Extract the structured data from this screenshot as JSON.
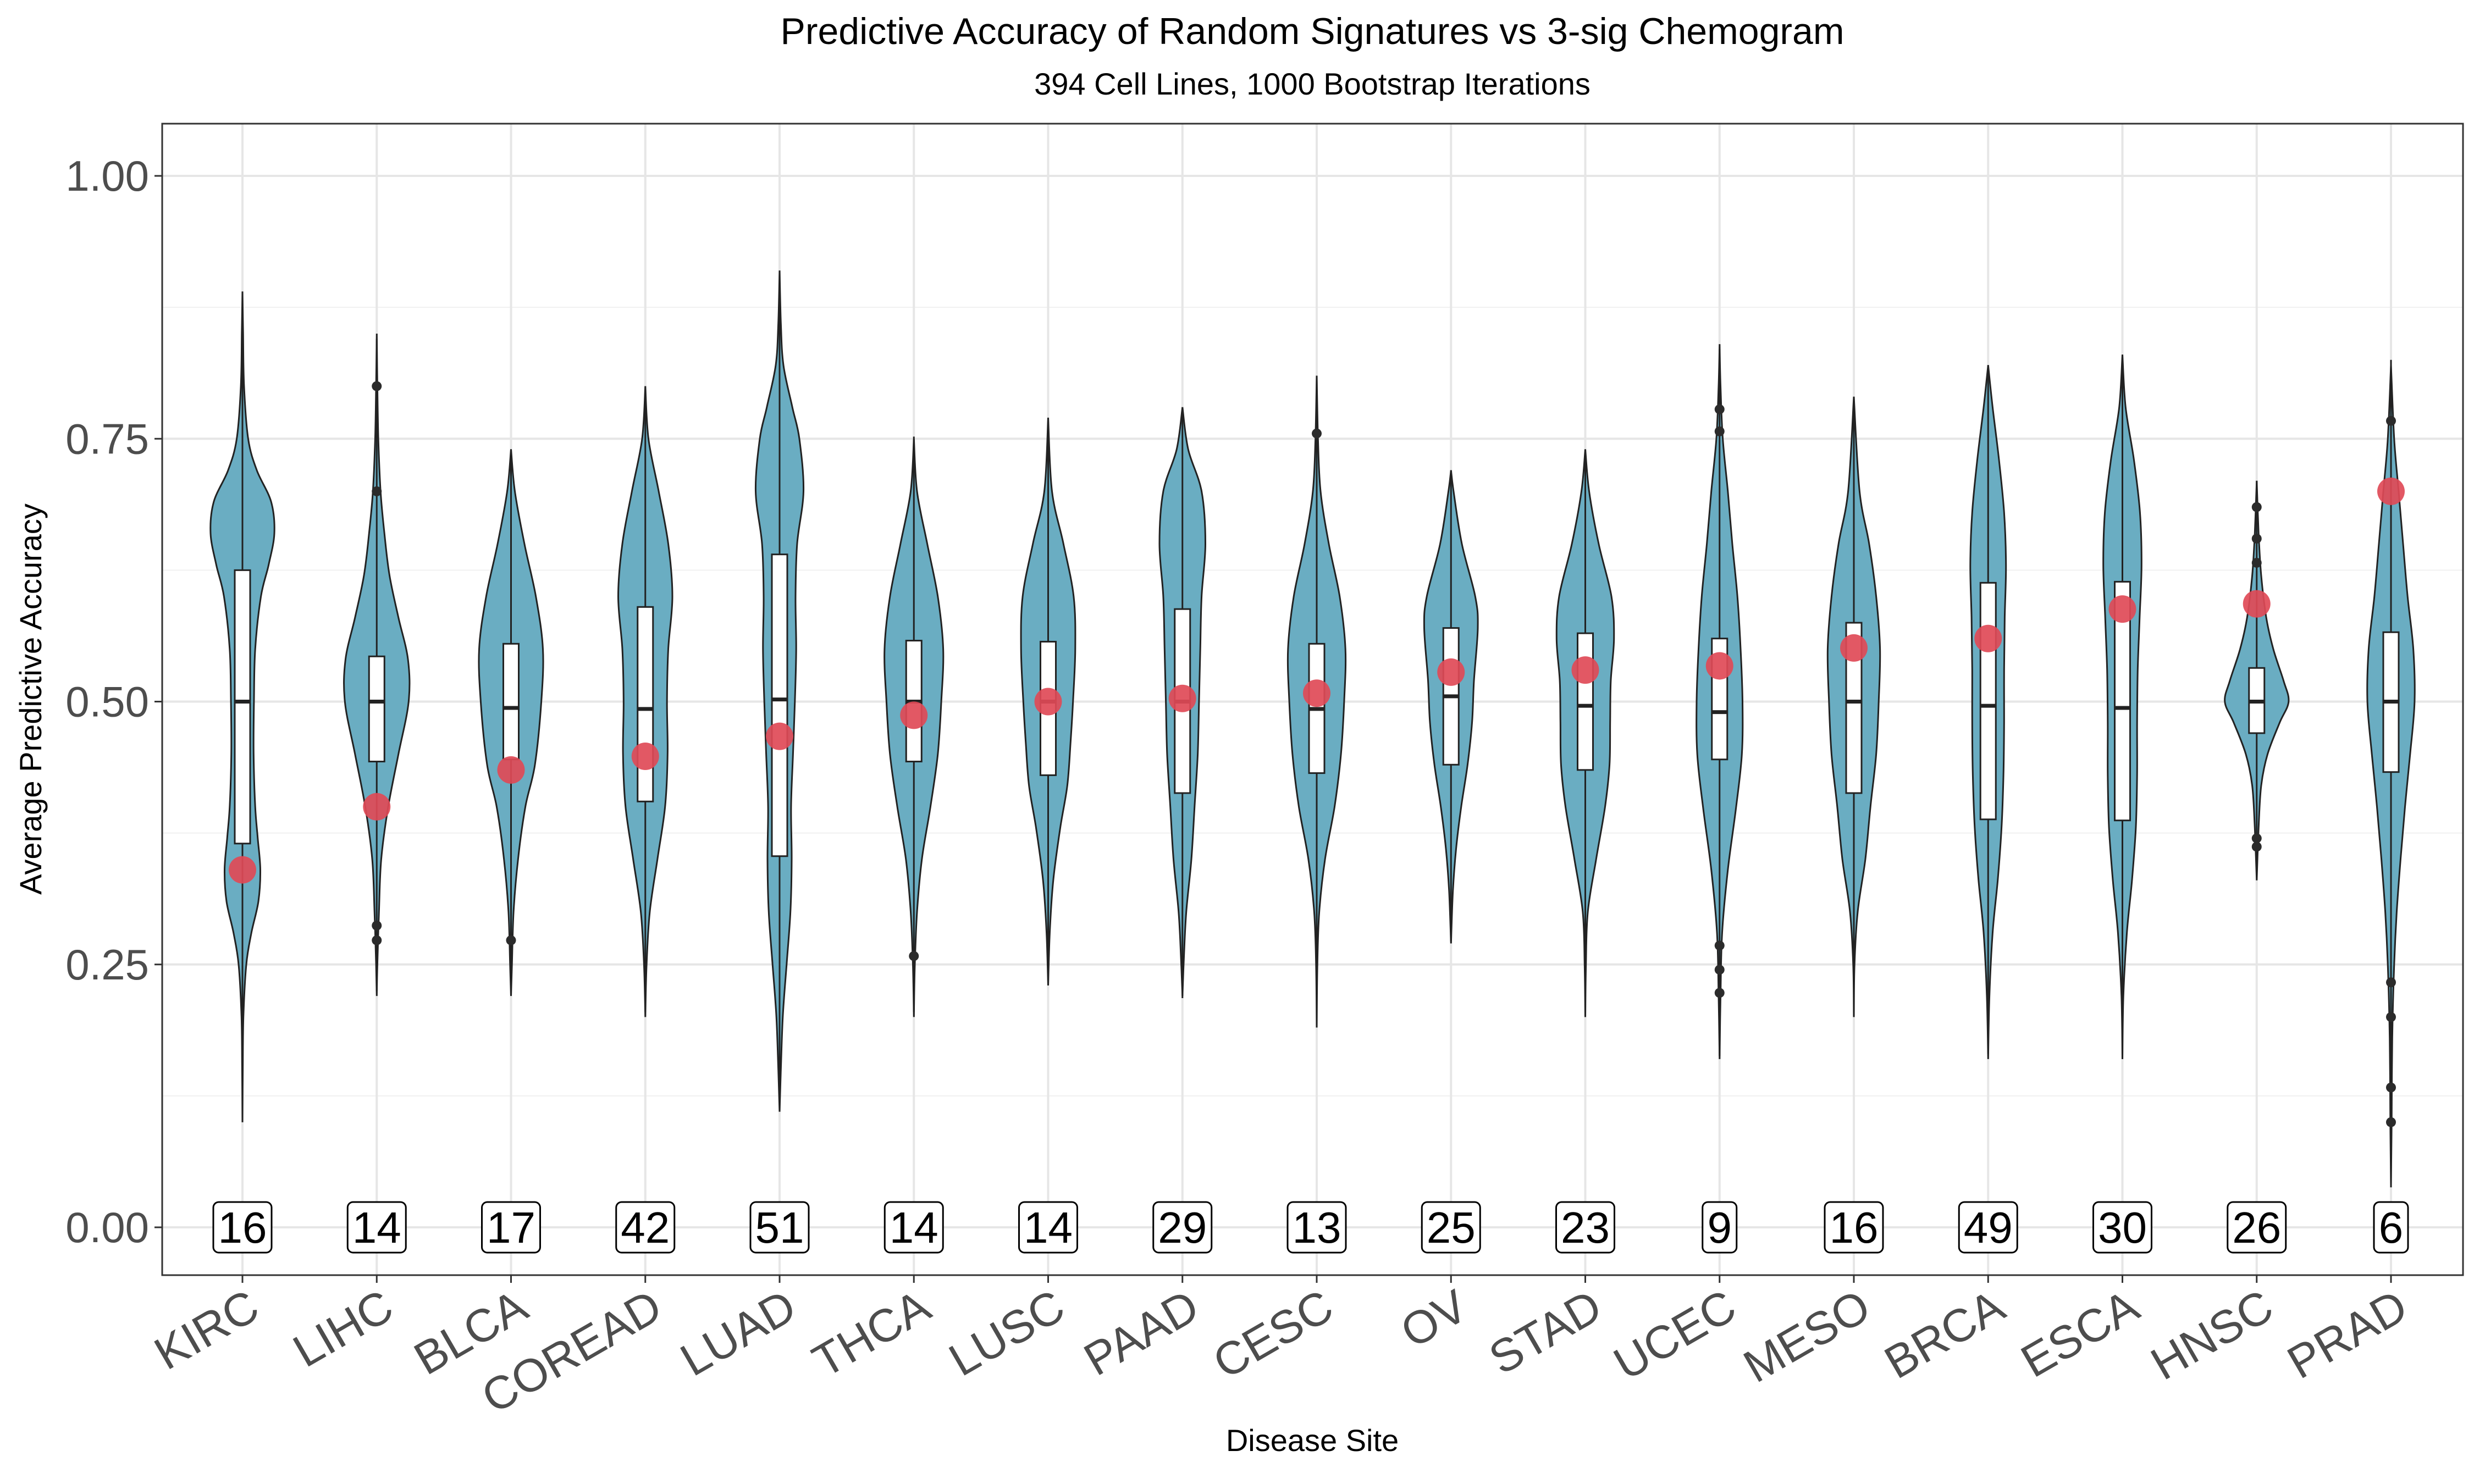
{
  "chart_data": {
    "type": "violin",
    "title": "Predictive Accuracy of Random Signatures vs 3-sig Chemogram",
    "subtitle": "394 Cell Lines, 1000 Bootstrap Iterations",
    "xlabel": "Disease Site",
    "ylabel": "Average Predictive Accuracy",
    "ylim": [
      -0.05,
      1.05
    ],
    "yticks": [
      {
        "value": 0.0,
        "label": "0.00"
      },
      {
        "value": 0.25,
        "label": "0.25"
      },
      {
        "value": 0.5,
        "label": "0.50"
      },
      {
        "value": 0.75,
        "label": "0.75"
      },
      {
        "value": 1.0,
        "label": "1.00"
      }
    ],
    "grid": true,
    "violin_color": "#6aadc2",
    "point_color": "#e04a57",
    "categories": [
      "KIRC",
      "LIHC",
      "BLCA",
      "COREAD",
      "LUAD",
      "THCA",
      "LUSC",
      "PAAD",
      "CESC",
      "OV",
      "STAD",
      "UCEC",
      "MESO",
      "BRCA",
      "ESCA",
      "HNSC",
      "PRAD"
    ],
    "counts": [
      "16",
      "14",
      "17",
      "42",
      "51",
      "14",
      "14",
      "29",
      "13",
      "25",
      "23",
      "9",
      "16",
      "49",
      "30",
      "26",
      "6"
    ],
    "chemogram_accuracy": [
      0.34,
      0.4,
      0.435,
      0.448,
      0.467,
      0.487,
      0.5,
      0.503,
      0.508,
      0.528,
      0.53,
      0.534,
      0.551,
      0.56,
      0.588,
      0.593,
      0.7
    ],
    "boxplots": [
      {
        "min": 0.1,
        "q1": 0.365,
        "median": 0.5,
        "q3": 0.625,
        "max": 0.89,
        "outliers": []
      },
      {
        "min": 0.225,
        "q1": 0.443,
        "median": 0.5,
        "q3": 0.543,
        "max": 0.845,
        "outliers": [
          0.8,
          0.7,
          0.287,
          0.273
        ]
      },
      {
        "min": 0.222,
        "q1": 0.445,
        "median": 0.494,
        "q3": 0.555,
        "max": 0.74,
        "outliers": [
          0.273
        ]
      },
      {
        "min": 0.205,
        "q1": 0.405,
        "median": 0.493,
        "q3": 0.59,
        "max": 0.795,
        "outliers": []
      },
      {
        "min": 0.11,
        "q1": 0.353,
        "median": 0.502,
        "q3": 0.64,
        "max": 0.905,
        "outliers": []
      },
      {
        "min": 0.205,
        "q1": 0.443,
        "median": 0.5,
        "q3": 0.558,
        "max": 0.752,
        "outliers": [
          0.258
        ]
      },
      {
        "min": 0.232,
        "q1": 0.43,
        "median": 0.5,
        "q3": 0.557,
        "max": 0.768,
        "outliers": []
      },
      {
        "min": 0.218,
        "q1": 0.413,
        "median": 0.5,
        "q3": 0.588,
        "max": 0.78,
        "outliers": []
      },
      {
        "min": 0.192,
        "q1": 0.432,
        "median": 0.493,
        "q3": 0.555,
        "max": 0.805,
        "outliers": [
          0.755
        ]
      },
      {
        "min": 0.272,
        "q1": 0.44,
        "median": 0.505,
        "q3": 0.57,
        "max": 0.72,
        "outliers": []
      },
      {
        "min": 0.2,
        "q1": 0.435,
        "median": 0.496,
        "q3": 0.565,
        "max": 0.738,
        "outliers": []
      },
      {
        "min": 0.163,
        "q1": 0.445,
        "median": 0.49,
        "q3": 0.56,
        "max": 0.835,
        "outliers": [
          0.778,
          0.757,
          0.268,
          0.245,
          0.223
        ]
      },
      {
        "min": 0.2,
        "q1": 0.413,
        "median": 0.5,
        "q3": 0.575,
        "max": 0.788,
        "outliers": []
      },
      {
        "min": 0.165,
        "q1": 0.388,
        "median": 0.496,
        "q3": 0.613,
        "max": 0.82,
        "outliers": []
      },
      {
        "min": 0.16,
        "q1": 0.387,
        "median": 0.494,
        "q3": 0.614,
        "max": 0.83,
        "outliers": []
      },
      {
        "min": 0.335,
        "q1": 0.47,
        "median": 0.5,
        "q3": 0.532,
        "max": 0.71,
        "outliers": [
          0.685,
          0.655,
          0.632,
          0.37,
          0.362
        ]
      },
      {
        "min": 0.038,
        "q1": 0.433,
        "median": 0.5,
        "q3": 0.566,
        "max": 0.825,
        "outliers": [
          0.767,
          0.233,
          0.2,
          0.133,
          0.1
        ]
      }
    ],
    "violins": [
      {
        "min": 0.105,
        "max": 0.893,
        "shape": [
          [
            0.1,
            0
          ],
          [
            0.15,
            0.01
          ],
          [
            0.2,
            0.03
          ],
          [
            0.25,
            0.12
          ],
          [
            0.28,
            0.28
          ],
          [
            0.31,
            0.5
          ],
          [
            0.34,
            0.56
          ],
          [
            0.37,
            0.48
          ],
          [
            0.4,
            0.4
          ],
          [
            0.45,
            0.35
          ],
          [
            0.5,
            0.36
          ],
          [
            0.55,
            0.4
          ],
          [
            0.6,
            0.58
          ],
          [
            0.63,
            0.82
          ],
          [
            0.66,
            1.0
          ],
          [
            0.69,
            0.9
          ],
          [
            0.72,
            0.45
          ],
          [
            0.75,
            0.18
          ],
          [
            0.8,
            0.05
          ],
          [
            0.85,
            0.02
          ],
          [
            0.89,
            0
          ]
        ]
      },
      {
        "min": 0.225,
        "max": 0.848,
        "shape": [
          [
            0.22,
            0
          ],
          [
            0.25,
            0.02
          ],
          [
            0.3,
            0.07
          ],
          [
            0.35,
            0.14
          ],
          [
            0.4,
            0.36
          ],
          [
            0.45,
            0.68
          ],
          [
            0.5,
            1.0
          ],
          [
            0.54,
            0.98
          ],
          [
            0.58,
            0.68
          ],
          [
            0.62,
            0.4
          ],
          [
            0.66,
            0.24
          ],
          [
            0.7,
            0.12
          ],
          [
            0.75,
            0.05
          ],
          [
            0.8,
            0.02
          ],
          [
            0.85,
            0
          ]
        ]
      },
      {
        "min": 0.222,
        "max": 0.742,
        "shape": [
          [
            0.22,
            0
          ],
          [
            0.25,
            0.03
          ],
          [
            0.3,
            0.08
          ],
          [
            0.35,
            0.22
          ],
          [
            0.4,
            0.45
          ],
          [
            0.44,
            0.75
          ],
          [
            0.5,
            0.95
          ],
          [
            0.55,
            1.0
          ],
          [
            0.6,
            0.78
          ],
          [
            0.65,
            0.42
          ],
          [
            0.7,
            0.12
          ],
          [
            0.74,
            0
          ]
        ]
      },
      {
        "min": 0.203,
        "max": 0.795,
        "shape": [
          [
            0.2,
            0
          ],
          [
            0.25,
            0.04
          ],
          [
            0.3,
            0.14
          ],
          [
            0.35,
            0.38
          ],
          [
            0.4,
            0.62
          ],
          [
            0.45,
            0.7
          ],
          [
            0.5,
            0.68
          ],
          [
            0.55,
            0.72
          ],
          [
            0.6,
            0.85
          ],
          [
            0.65,
            0.72
          ],
          [
            0.7,
            0.42
          ],
          [
            0.75,
            0.1
          ],
          [
            0.8,
            0
          ]
        ]
      },
      {
        "min": 0.11,
        "max": 0.908,
        "shape": [
          [
            0.11,
            0
          ],
          [
            0.15,
            0.04
          ],
          [
            0.2,
            0.1
          ],
          [
            0.25,
            0.22
          ],
          [
            0.3,
            0.34
          ],
          [
            0.35,
            0.38
          ],
          [
            0.4,
            0.36
          ],
          [
            0.45,
            0.42
          ],
          [
            0.5,
            0.48
          ],
          [
            0.55,
            0.52
          ],
          [
            0.6,
            0.5
          ],
          [
            0.65,
            0.55
          ],
          [
            0.7,
            0.75
          ],
          [
            0.75,
            0.62
          ],
          [
            0.78,
            0.4
          ],
          [
            0.82,
            0.12
          ],
          [
            0.86,
            0.04
          ],
          [
            0.91,
            0
          ]
        ]
      },
      {
        "min": 0.203,
        "max": 0.755,
        "shape": [
          [
            0.2,
            0
          ],
          [
            0.25,
            0.03
          ],
          [
            0.3,
            0.1
          ],
          [
            0.35,
            0.25
          ],
          [
            0.4,
            0.52
          ],
          [
            0.45,
            0.75
          ],
          [
            0.5,
            0.86
          ],
          [
            0.55,
            0.92
          ],
          [
            0.6,
            0.75
          ],
          [
            0.65,
            0.42
          ],
          [
            0.7,
            0.1
          ],
          [
            0.75,
            0
          ]
        ]
      },
      {
        "min": 0.232,
        "max": 0.768,
        "shape": [
          [
            0.23,
            0
          ],
          [
            0.28,
            0.05
          ],
          [
            0.33,
            0.16
          ],
          [
            0.38,
            0.38
          ],
          [
            0.42,
            0.6
          ],
          [
            0.46,
            0.7
          ],
          [
            0.5,
            0.78
          ],
          [
            0.55,
            0.85
          ],
          [
            0.6,
            0.8
          ],
          [
            0.65,
            0.48
          ],
          [
            0.7,
            0.12
          ],
          [
            0.77,
            0
          ]
        ]
      },
      {
        "min": 0.218,
        "max": 0.782,
        "shape": [
          [
            0.22,
            0
          ],
          [
            0.26,
            0.05
          ],
          [
            0.3,
            0.12
          ],
          [
            0.35,
            0.28
          ],
          [
            0.4,
            0.38
          ],
          [
            0.45,
            0.48
          ],
          [
            0.5,
            0.52
          ],
          [
            0.55,
            0.56
          ],
          [
            0.6,
            0.6
          ],
          [
            0.65,
            0.72
          ],
          [
            0.7,
            0.6
          ],
          [
            0.74,
            0.18
          ],
          [
            0.78,
            0
          ]
        ]
      },
      {
        "min": 0.192,
        "max": 0.808,
        "shape": [
          [
            0.19,
            0
          ],
          [
            0.25,
            0.02
          ],
          [
            0.3,
            0.08
          ],
          [
            0.35,
            0.26
          ],
          [
            0.4,
            0.56
          ],
          [
            0.45,
            0.76
          ],
          [
            0.5,
            0.86
          ],
          [
            0.55,
            0.9
          ],
          [
            0.6,
            0.72
          ],
          [
            0.65,
            0.38
          ],
          [
            0.7,
            0.12
          ],
          [
            0.75,
            0.04
          ],
          [
            0.81,
            0
          ]
        ]
      },
      {
        "min": 0.272,
        "max": 0.72,
        "shape": [
          [
            0.27,
            0
          ],
          [
            0.32,
            0.06
          ],
          [
            0.36,
            0.16
          ],
          [
            0.4,
            0.32
          ],
          [
            0.44,
            0.52
          ],
          [
            0.48,
            0.66
          ],
          [
            0.52,
            0.72
          ],
          [
            0.57,
            0.84
          ],
          [
            0.6,
            0.76
          ],
          [
            0.65,
            0.34
          ],
          [
            0.7,
            0.08
          ],
          [
            0.72,
            0
          ]
        ]
      },
      {
        "min": 0.2,
        "max": 0.74,
        "shape": [
          [
            0.2,
            0
          ],
          [
            0.25,
            0.02
          ],
          [
            0.3,
            0.08
          ],
          [
            0.35,
            0.34
          ],
          [
            0.4,
            0.62
          ],
          [
            0.44,
            0.76
          ],
          [
            0.48,
            0.78
          ],
          [
            0.52,
            0.8
          ],
          [
            0.56,
            0.9
          ],
          [
            0.6,
            0.82
          ],
          [
            0.65,
            0.42
          ],
          [
            0.7,
            0.12
          ],
          [
            0.74,
            0
          ]
        ]
      },
      {
        "min": 0.163,
        "max": 0.838,
        "shape": [
          [
            0.16,
            0
          ],
          [
            0.22,
            0.03
          ],
          [
            0.28,
            0.08
          ],
          [
            0.34,
            0.26
          ],
          [
            0.4,
            0.52
          ],
          [
            0.45,
            0.7
          ],
          [
            0.5,
            0.72
          ],
          [
            0.55,
            0.66
          ],
          [
            0.6,
            0.56
          ],
          [
            0.65,
            0.4
          ],
          [
            0.7,
            0.26
          ],
          [
            0.75,
            0.1
          ],
          [
            0.8,
            0.03
          ],
          [
            0.84,
            0
          ]
        ]
      },
      {
        "min": 0.2,
        "max": 0.79,
        "shape": [
          [
            0.2,
            0
          ],
          [
            0.25,
            0.02
          ],
          [
            0.3,
            0.12
          ],
          [
            0.35,
            0.36
          ],
          [
            0.4,
            0.52
          ],
          [
            0.45,
            0.7
          ],
          [
            0.5,
            0.78
          ],
          [
            0.55,
            0.82
          ],
          [
            0.6,
            0.7
          ],
          [
            0.65,
            0.48
          ],
          [
            0.7,
            0.18
          ],
          [
            0.79,
            0
          ]
        ]
      },
      {
        "min": 0.165,
        "max": 0.822,
        "shape": [
          [
            0.16,
            0
          ],
          [
            0.22,
            0.04
          ],
          [
            0.28,
            0.14
          ],
          [
            0.33,
            0.3
          ],
          [
            0.38,
            0.42
          ],
          [
            0.43,
            0.48
          ],
          [
            0.48,
            0.5
          ],
          [
            0.53,
            0.5
          ],
          [
            0.58,
            0.52
          ],
          [
            0.63,
            0.56
          ],
          [
            0.68,
            0.5
          ],
          [
            0.73,
            0.34
          ],
          [
            0.78,
            0.14
          ],
          [
            0.82,
            0
          ]
        ]
      },
      {
        "min": 0.16,
        "max": 0.833,
        "shape": [
          [
            0.16,
            0
          ],
          [
            0.22,
            0.03
          ],
          [
            0.28,
            0.14
          ],
          [
            0.33,
            0.3
          ],
          [
            0.38,
            0.42
          ],
          [
            0.43,
            0.46
          ],
          [
            0.48,
            0.46
          ],
          [
            0.53,
            0.48
          ],
          [
            0.58,
            0.54
          ],
          [
            0.63,
            0.6
          ],
          [
            0.68,
            0.55
          ],
          [
            0.73,
            0.36
          ],
          [
            0.78,
            0.1
          ],
          [
            0.83,
            0
          ]
        ]
      },
      {
        "min": 0.335,
        "max": 0.712,
        "shape": [
          [
            0.33,
            0
          ],
          [
            0.38,
            0.06
          ],
          [
            0.42,
            0.14
          ],
          [
            0.45,
            0.34
          ],
          [
            0.48,
            0.72
          ],
          [
            0.5,
            1.0
          ],
          [
            0.52,
            0.84
          ],
          [
            0.55,
            0.52
          ],
          [
            0.58,
            0.3
          ],
          [
            0.62,
            0.14
          ],
          [
            0.66,
            0.06
          ],
          [
            0.71,
            0
          ]
        ]
      },
      {
        "min": 0.038,
        "max": 0.828,
        "shape": [
          [
            0.04,
            0
          ],
          [
            0.1,
            0.02
          ],
          [
            0.18,
            0.04
          ],
          [
            0.25,
            0.1
          ],
          [
            0.3,
            0.18
          ],
          [
            0.35,
            0.3
          ],
          [
            0.4,
            0.44
          ],
          [
            0.45,
            0.6
          ],
          [
            0.5,
            0.74
          ],
          [
            0.55,
            0.7
          ],
          [
            0.6,
            0.52
          ],
          [
            0.65,
            0.38
          ],
          [
            0.7,
            0.24
          ],
          [
            0.75,
            0.1
          ],
          [
            0.82,
            0
          ]
        ]
      }
    ]
  }
}
